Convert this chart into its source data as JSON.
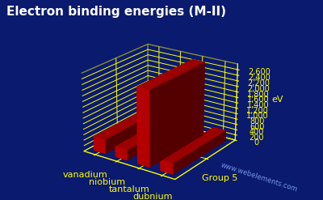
{
  "title": "Electron binding energies (M-II)",
  "elements": [
    "vanadium",
    "niobium",
    "tantalum",
    "dubnium"
  ],
  "values": [
    521,
    378,
    2708,
    398
  ],
  "ylabel": "eV",
  "xlabel": "Group 5",
  "background_color": "#0a1a6e",
  "bar_color": "#cc0000",
  "grid_color": "#ffff00",
  "text_color": "#ffff00",
  "title_color": "#ffffff",
  "ylim": [
    0,
    2800
  ],
  "yticks": [
    0,
    200,
    400,
    600,
    800,
    1000,
    1200,
    1400,
    1600,
    1800,
    2000,
    2200,
    2400,
    2600
  ],
  "ytick_labels": [
    "0",
    "200",
    "400",
    "600",
    "800",
    "1,000",
    "1,200",
    "1,400",
    "1,600",
    "1,800",
    "2,000",
    "2,200",
    "2,400",
    "2,600"
  ],
  "watermark": "www.webelements.com",
  "title_fontsize": 11,
  "axis_fontsize": 8,
  "tick_fontsize": 7,
  "elev": 22,
  "azim": -55
}
